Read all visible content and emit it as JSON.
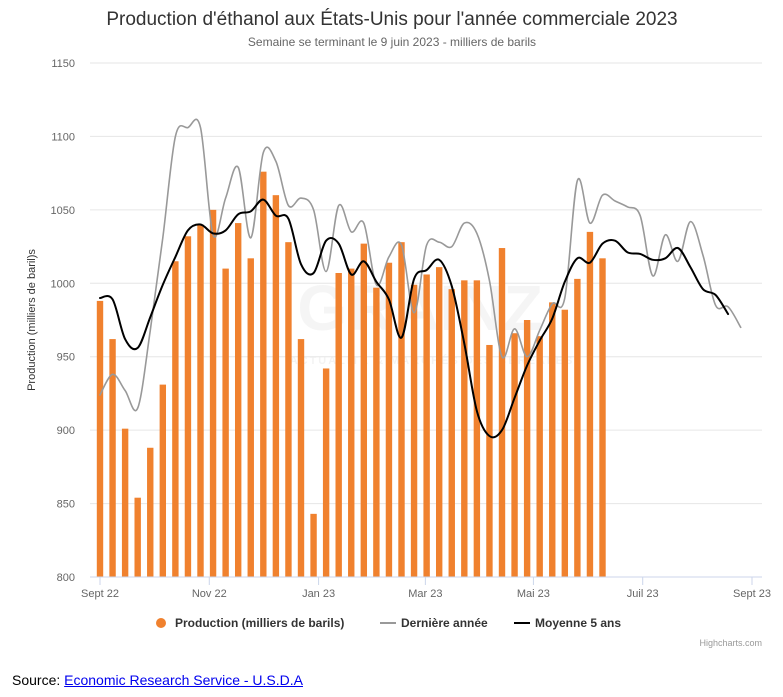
{
  "chart_data": {
    "type": "bar",
    "title": "Production d'éthanol aux États-Unis pour l'année commerciale 2023",
    "subtitle": "Semaine se terminant le 9 juin 2023 - milliers de barils",
    "ylabel": "Production (milliers de baril)s",
    "xlabel": "",
    "ylim": [
      800,
      1150
    ],
    "y_ticks": [
      "800",
      "850",
      "900",
      "950",
      "1000",
      "1050",
      "1100",
      "1150"
    ],
    "x_ticks": [
      {
        "label": "Sept 22",
        "week": 0
      },
      {
        "label": "Nov 22",
        "week": 8.7
      },
      {
        "label": "Jan 23",
        "week": 17.4
      },
      {
        "label": "Mar 23",
        "week": 25.9
      },
      {
        "label": "Mai 23",
        "week": 34.5
      },
      {
        "label": "Juil 23",
        "week": 43.2
      },
      {
        "label": "Sept 23",
        "week": 51.9
      }
    ],
    "grid": true,
    "legend_position": "bottom",
    "series": [
      {
        "name": "Production (milliers de barils)",
        "type": "bar",
        "color": "#f0812e",
        "values": [
          988,
          962,
          901,
          854,
          888,
          931,
          1015,
          1032,
          1040,
          1050,
          1010,
          1041,
          1017,
          1076,
          1060,
          1028,
          962,
          843,
          942,
          1007,
          1010,
          1027,
          997,
          1014,
          1028,
          999,
          1006,
          1011,
          996,
          1002,
          1002,
          958,
          1024,
          966,
          975,
          964,
          987,
          982,
          1003,
          1035,
          1017
        ]
      },
      {
        "name": "Dernière année",
        "type": "line",
        "color": "#999999",
        "values": [
          924,
          938,
          927,
          915,
          968,
          1031,
          1100,
          1106,
          1106,
          1033,
          1058,
          1079,
          1031,
          1089,
          1083,
          1053,
          1058,
          1050,
          1008,
          1053,
          1035,
          1041,
          999,
          1018,
          1026,
          980,
          1026,
          1028,
          1025,
          1041,
          1034,
          1002,
          950,
          969,
          950,
          968,
          986,
          990,
          1070,
          1041,
          1060,
          1056,
          1052,
          1046,
          1005,
          1033,
          1015,
          1042,
          1019,
          985,
          984,
          970
        ]
      },
      {
        "name": "Moyenne 5 ans",
        "type": "line",
        "color": "#000000",
        "values": [
          990,
          989,
          962,
          956,
          977,
          999,
          1018,
          1036,
          1040,
          1034,
          1036,
          1047,
          1049,
          1057,
          1046,
          1044,
          1013,
          1007,
          1029,
          1027,
          1006,
          1015,
          1001,
          989,
          963,
          1003,
          1009,
          1016,
          998,
          959,
          913,
          896,
          900,
          922,
          944,
          961,
          976,
          1001,
          1017,
          1014,
          1027,
          1029,
          1021,
          1020,
          1016,
          1017,
          1024,
          1011,
          996,
          992,
          979
        ]
      }
    ]
  },
  "credits": "Highcharts.com",
  "watermark": {
    "logo_text": "GRAINZ",
    "tagline": "ACTUALITÉ & MARCHÉS DES CÉRÉALES"
  },
  "source": {
    "prefix": "Source: ",
    "link_text": "Economic Research Service - U.S.D.A"
  }
}
